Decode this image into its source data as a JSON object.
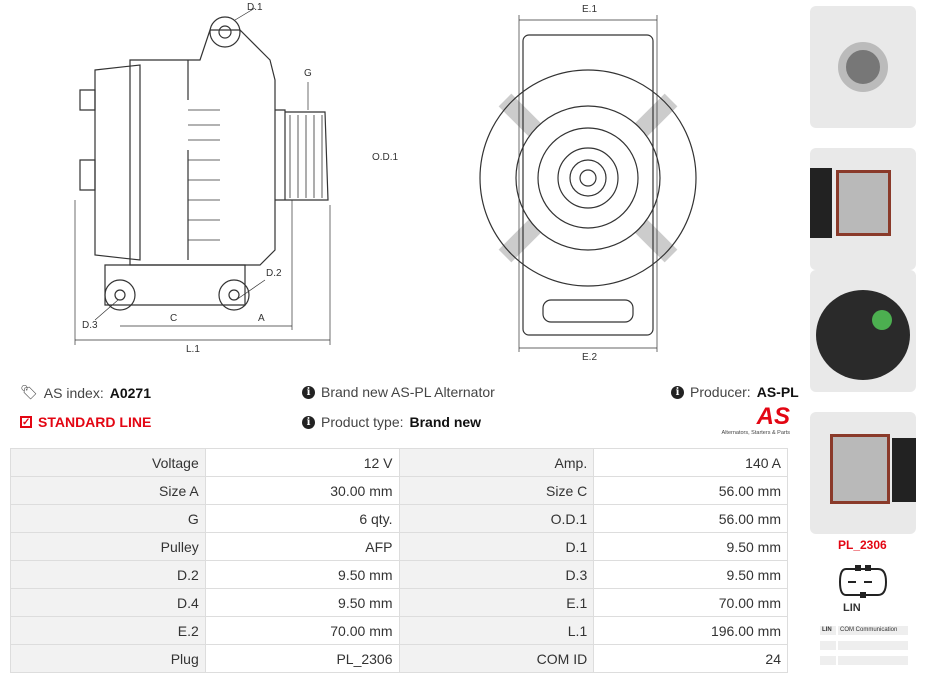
{
  "diagram_labels": {
    "d1": "D.1",
    "g": "G",
    "od1": "O.D.1",
    "d2": "D.2",
    "d3": "D.3",
    "c": "C",
    "a": "A",
    "l1": "L.1",
    "e1": "E.1",
    "e2": "E.2"
  },
  "info": {
    "as_index_label": "AS index:",
    "as_index_value": "A0271",
    "standard_line": "STANDARD LINE",
    "brand_new": "Brand new AS-PL Alternator",
    "product_type_label": "Product type:",
    "product_type_value": "Brand new",
    "producer_label": "Producer:",
    "producer_value": "AS-PL",
    "logo_text": "AS",
    "logo_tagline": "Alternators, Starters & Parts"
  },
  "specs": [
    [
      "Voltage",
      "12 V",
      "Amp.",
      "140 A"
    ],
    [
      "Size A",
      "30.00 mm",
      "Size C",
      "56.00 mm"
    ],
    [
      "G",
      "6 qty.",
      "O.D.1",
      "56.00 mm"
    ],
    [
      "Pulley",
      "AFP",
      "D.1",
      "9.50 mm"
    ],
    [
      "D.2",
      "9.50 mm",
      "D.3",
      "9.50 mm"
    ],
    [
      "D.4",
      "9.50 mm",
      "E.1",
      "70.00 mm"
    ],
    [
      "E.2",
      "70.00 mm",
      "L.1",
      "196.00 mm"
    ],
    [
      "Plug",
      "PL_2306",
      "COM ID",
      "24"
    ]
  ],
  "plug": {
    "code": "PL_2306",
    "type": "LIN",
    "com_table": [
      [
        "LIN",
        "COM Communication"
      ],
      [
        "",
        ""
      ],
      [
        "",
        ""
      ]
    ]
  },
  "colors": {
    "accent": "#e30613"
  }
}
